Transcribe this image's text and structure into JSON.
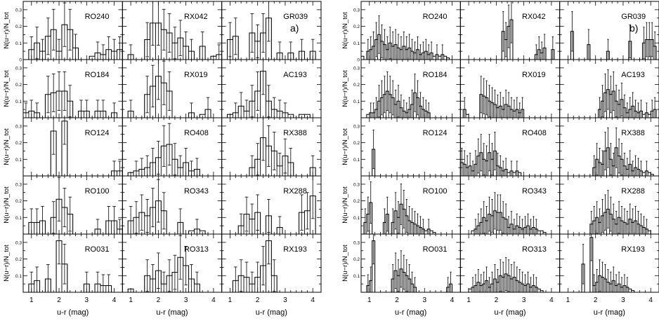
{
  "chart_data": [
    {
      "type": "bar",
      "panel_label": "a)",
      "xlabel": "u-r (mag)",
      "ylabel": "N(u−r)/N_tot",
      "xlim": [
        0.7,
        4.3
      ],
      "ylim": [
        0,
        0.35
      ],
      "x_ticks": [
        "1",
        "2",
        "3",
        "4"
      ],
      "y_ticks": [
        "0",
        "0.1",
        "0.2",
        "0.3"
      ],
      "bin_width": 0.2,
      "bins_x": [
        0.8,
        1.0,
        1.2,
        1.4,
        1.6,
        1.8,
        2.0,
        2.2,
        2.4,
        2.6,
        2.8,
        3.0,
        3.2,
        3.4,
        3.6,
        3.8,
        4.0,
        4.2
      ],
      "panels": [
        {
          "name": "RO240",
          "values": [
            0.0,
            0.06,
            0.1,
            0.05,
            0.14,
            0.18,
            0.05,
            0.21,
            0.18,
            0.07,
            0.0,
            0.0,
            0.02,
            0.04,
            0.03,
            0.06,
            0.05,
            0.06
          ]
        },
        {
          "name": "RX042",
          "values": [
            0.0,
            0.03,
            0.0,
            0.0,
            0.12,
            0.22,
            0.22,
            0.18,
            0.16,
            0.1,
            0.13,
            0.08,
            0.05,
            0.0,
            0.08,
            0.0,
            0.02,
            0.03
          ]
        },
        {
          "name": "GR039",
          "values": [
            0.0,
            0.12,
            0.14,
            0.0,
            0.0,
            0.16,
            0.11,
            0.16,
            0.25,
            0.0,
            0.04,
            0.0,
            0.04,
            0.0,
            0.05,
            0.0,
            0.05,
            0.0
          ]
        },
        {
          "name": "RO184",
          "values": [
            0.03,
            0.04,
            0.03,
            0.0,
            0.14,
            0.15,
            0.16,
            0.16,
            0.1,
            0.0,
            0.04,
            0.04,
            0.0,
            0.04,
            0.04,
            0.0,
            0.03,
            0.0
          ]
        },
        {
          "name": "RX019",
          "values": [
            0.0,
            0.04,
            0.0,
            0.0,
            0.14,
            0.19,
            0.25,
            0.21,
            0.16,
            0.0,
            0.0,
            0.0,
            0.03,
            0.0,
            0.02,
            0.05,
            0.0,
            0.0
          ]
        },
        {
          "name": "AC193",
          "values": [
            0.0,
            0.02,
            0.03,
            0.07,
            0.04,
            0.1,
            0.16,
            0.28,
            0.1,
            0.05,
            0.04,
            0.03,
            0.02,
            0.0,
            0.02,
            0.02,
            0.0,
            0.0
          ]
        },
        {
          "name": "RO124",
          "values": [
            0.0,
            0.0,
            0.0,
            0.0,
            0.0,
            0.27,
            0.0,
            0.33,
            0.0,
            0.0,
            0.0,
            0.0,
            0.0,
            0.0,
            0.0,
            0.0,
            0.03,
            0.03
          ]
        },
        {
          "name": "RO408",
          "values": [
            0.0,
            0.02,
            0.03,
            0.04,
            0.05,
            0.08,
            0.11,
            0.18,
            0.19,
            0.1,
            0.05,
            0.08,
            0.03,
            0.04,
            0.0,
            0.0,
            0.0,
            0.0
          ]
        },
        {
          "name": "RX388",
          "values": [
            0.0,
            0.0,
            0.0,
            0.0,
            0.0,
            0.05,
            0.1,
            0.23,
            0.18,
            0.15,
            0.06,
            0.12,
            0.08,
            0.0,
            0.0,
            0.0,
            0.05,
            0.0
          ]
        },
        {
          "name": "RO100",
          "values": [
            0.0,
            0.07,
            0.07,
            0.08,
            0.0,
            0.1,
            0.21,
            0.16,
            0.12,
            0.0,
            0.0,
            0.0,
            0.0,
            0.03,
            0.0,
            0.08,
            0.08,
            0.03
          ]
        },
        {
          "name": "RO343",
          "values": [
            0.0,
            0.08,
            0.1,
            0.13,
            0.11,
            0.16,
            0.2,
            0.14,
            0.0,
            0.0,
            0.07,
            0.0,
            0.02,
            0.03,
            0.02,
            0.0,
            0.0,
            0.0
          ]
        },
        {
          "name": "RX288",
          "values": [
            0.0,
            0.0,
            0.0,
            0.05,
            0.12,
            0.09,
            0.13,
            0.0,
            0.11,
            0.0,
            0.04,
            0.0,
            0.0,
            0.0,
            0.13,
            0.14,
            0.23,
            0.0
          ]
        },
        {
          "name": "RO031",
          "values": [
            0.0,
            0.05,
            0.07,
            0.0,
            0.08,
            0.0,
            0.31,
            0.17,
            0.0,
            0.0,
            0.0,
            0.05,
            0.0,
            0.05,
            0.04,
            0.04,
            0.0,
            0.0
          ]
        },
        {
          "name": "RO313",
          "values": [
            0.0,
            0.02,
            0.0,
            0.0,
            0.1,
            0.08,
            0.13,
            0.05,
            0.1,
            0.12,
            0.21,
            0.16,
            0.08,
            0.05,
            0.0,
            0.0,
            0.0,
            0.0
          ]
        },
        {
          "name": "RX193",
          "values": [
            0.0,
            0.0,
            0.07,
            0.1,
            0.09,
            0.05,
            0.09,
            0.16,
            0.31,
            0.1,
            0.0,
            0.0,
            0.0,
            0.0,
            0.0,
            0.0,
            0.0,
            0.0
          ]
        }
      ]
    },
    {
      "type": "bar",
      "panel_label": "b)",
      "xlabel": "u-r (mag)",
      "ylabel": "N(u−r)/N_tot",
      "xlim": [
        0.7,
        4.3
      ],
      "ylim": [
        0,
        0.35
      ],
      "x_ticks": [
        "1",
        "2",
        "3",
        "4"
      ],
      "y_ticks": [
        "0",
        "0.1",
        "0.2",
        "0.3"
      ],
      "bin_width": 0.1,
      "bins_x": [
        0.75,
        0.85,
        0.95,
        1.05,
        1.15,
        1.25,
        1.35,
        1.45,
        1.55,
        1.65,
        1.75,
        1.85,
        1.95,
        2.05,
        2.15,
        2.25,
        2.35,
        2.45,
        2.55,
        2.65,
        2.75,
        2.85,
        2.95,
        3.05,
        3.15,
        3.25,
        3.35,
        3.45,
        3.55,
        3.65,
        3.75,
        3.85,
        3.95,
        4.05,
        4.15,
        4.25
      ],
      "panels": [
        {
          "name": "RO240",
          "values": [
            0.02,
            0.0,
            0.05,
            0.06,
            0.08,
            0.12,
            0.15,
            0.11,
            0.09,
            0.06,
            0.1,
            0.08,
            0.09,
            0.07,
            0.06,
            0.08,
            0.06,
            0.07,
            0.05,
            0.04,
            0.06,
            0.03,
            0.04,
            0.05,
            0.03,
            0.04,
            0.02,
            0.03,
            0.02,
            0.03,
            0.02,
            0.01,
            0.0,
            0.0,
            0.0,
            0.0
          ]
        },
        {
          "name": "RX042",
          "values": [
            0.0,
            0.0,
            0.0,
            0.0,
            0.0,
            0.0,
            0.0,
            0.0,
            0.0,
            0.0,
            0.0,
            0.0,
            0.0,
            0.0,
            0.0,
            0.17,
            0.12,
            0.2,
            0.24,
            0.0,
            0.0,
            0.0,
            0.0,
            0.0,
            0.0,
            0.0,
            0.0,
            0.03,
            0.06,
            0.04,
            0.07,
            0.0,
            0.0,
            0.06,
            0.0,
            0.0
          ]
        },
        {
          "name": "GR039",
          "values": [
            0.0,
            0.0,
            0.0,
            0.0,
            0.17,
            0.0,
            0.0,
            0.0,
            0.0,
            0.0,
            0.09,
            0.0,
            0.0,
            0.0,
            0.0,
            0.0,
            0.0,
            0.05,
            0.0,
            0.0,
            0.0,
            0.0,
            0.0,
            0.0,
            0.0,
            0.11,
            0.0,
            0.0,
            0.0,
            0.0,
            0.1,
            0.12,
            0.12,
            0.12,
            0.08,
            0.0
          ]
        },
        {
          "name": "RO184",
          "values": [
            0.0,
            0.0,
            0.02,
            0.03,
            0.03,
            0.05,
            0.1,
            0.12,
            0.14,
            0.16,
            0.14,
            0.12,
            0.08,
            0.1,
            0.06,
            0.04,
            0.03,
            0.05,
            0.08,
            0.15,
            0.12,
            0.07,
            0.05,
            0.04,
            0.03,
            0.0,
            0.0,
            0.0,
            0.0,
            0.0,
            0.0,
            0.0,
            0.0,
            0.0,
            0.0,
            0.0
          ]
        },
        {
          "name": "RX019",
          "values": [
            0.0,
            0.05,
            0.02,
            0.0,
            0.0,
            0.0,
            0.0,
            0.14,
            0.13,
            0.12,
            0.1,
            0.09,
            0.08,
            0.06,
            0.07,
            0.05,
            0.08,
            0.07,
            0.05,
            0.04,
            0.05,
            0.03,
            0.05,
            0.0,
            0.0,
            0.0,
            0.0,
            0.0,
            0.0,
            0.0,
            0.0,
            0.0,
            0.0,
            0.0,
            0.0,
            0.0
          ]
        },
        {
          "name": "AC193",
          "values": [
            0.0,
            0.0,
            0.0,
            0.0,
            0.0,
            0.0,
            0.0,
            0.0,
            0.0,
            0.0,
            0.0,
            0.0,
            0.0,
            0.0,
            0.05,
            0.1,
            0.15,
            0.17,
            0.14,
            0.16,
            0.1,
            0.08,
            0.11,
            0.06,
            0.03,
            0.05,
            0.07,
            0.04,
            0.03,
            0.04,
            0.02,
            0.03,
            0.02,
            0.04,
            0.05,
            0.0
          ]
        },
        {
          "name": "RO124",
          "values": [
            0.0,
            0.0,
            0.0,
            0.0,
            0.16,
            0.0,
            0.0,
            0.0,
            0.0,
            0.0,
            0.0,
            0.0,
            0.0,
            0.0,
            0.0,
            0.0,
            0.0,
            0.0,
            0.0,
            0.0,
            0.0,
            0.0,
            0.0,
            0.0,
            0.0,
            0.0,
            0.0,
            0.0,
            0.0,
            0.0,
            0.0,
            0.0,
            0.0,
            0.0,
            0.0,
            0.0
          ]
        },
        {
          "name": "RO408",
          "values": [
            0.08,
            0.07,
            0.05,
            0.06,
            0.03,
            0.07,
            0.12,
            0.14,
            0.1,
            0.09,
            0.14,
            0.1,
            0.15,
            0.06,
            0.05,
            0.03,
            0.04,
            0.02,
            0.03,
            0.02,
            0.03,
            0.02,
            0.0,
            0.0,
            0.0,
            0.0,
            0.0,
            0.0,
            0.0,
            0.0,
            0.0,
            0.0,
            0.0,
            0.0,
            0.0,
            0.0
          ]
        },
        {
          "name": "RX388",
          "values": [
            0.0,
            0.0,
            0.0,
            0.0,
            0.0,
            0.0,
            0.0,
            0.0,
            0.0,
            0.0,
            0.0,
            0.0,
            0.05,
            0.1,
            0.08,
            0.07,
            0.15,
            0.17,
            0.1,
            0.06,
            0.17,
            0.12,
            0.1,
            0.06,
            0.04,
            0.07,
            0.03,
            0.05,
            0.04,
            0.03,
            0.02,
            0.03,
            0.02,
            0.01,
            0.0,
            0.0
          ]
        },
        {
          "name": "RO100",
          "values": [
            0.0,
            0.07,
            0.12,
            0.19,
            0.0,
            0.0,
            0.0,
            0.0,
            0.07,
            0.12,
            0.0,
            0.07,
            0.14,
            0.1,
            0.18,
            0.15,
            0.11,
            0.08,
            0.07,
            0.06,
            0.05,
            0.04,
            0.03,
            0.02,
            0.03,
            0.02,
            0.01,
            0.0,
            0.0,
            0.0,
            0.0,
            0.0,
            0.0,
            0.0,
            0.0,
            0.0
          ]
        },
        {
          "name": "RO343",
          "values": [
            0.0,
            0.0,
            0.0,
            0.0,
            0.02,
            0.03,
            0.05,
            0.07,
            0.1,
            0.08,
            0.12,
            0.11,
            0.14,
            0.13,
            0.13,
            0.1,
            0.09,
            0.04,
            0.06,
            0.03,
            0.05,
            0.04,
            0.03,
            0.04,
            0.05,
            0.03,
            0.04,
            0.03,
            0.02,
            0.02,
            0.01,
            0.0,
            0.0,
            0.0,
            0.0,
            0.0
          ]
        },
        {
          "name": "RX288",
          "values": [
            0.0,
            0.0,
            0.0,
            0.0,
            0.0,
            0.0,
            0.0,
            0.0,
            0.0,
            0.0,
            0.0,
            0.06,
            0.08,
            0.1,
            0.07,
            0.11,
            0.13,
            0.15,
            0.12,
            0.09,
            0.06,
            0.1,
            0.08,
            0.07,
            0.06,
            0.09,
            0.07,
            0.08,
            0.06,
            0.05,
            0.04,
            0.03,
            0.02,
            0.0,
            0.0,
            0.0
          ]
        },
        {
          "name": "RO031",
          "values": [
            0.0,
            0.0,
            0.04,
            0.07,
            0.31,
            0.0,
            0.0,
            0.0,
            0.0,
            0.0,
            0.0,
            0.08,
            0.13,
            0.1,
            0.14,
            0.12,
            0.1,
            0.08,
            0.05,
            0.03,
            0.0,
            0.0,
            0.0,
            0.0,
            0.0,
            0.0,
            0.0,
            0.0,
            0.0,
            0.0,
            0.0,
            0.03,
            0.05,
            0.0,
            0.0,
            0.0
          ]
        },
        {
          "name": "RO313",
          "values": [
            0.0,
            0.0,
            0.0,
            0.02,
            0.03,
            0.04,
            0.06,
            0.04,
            0.05,
            0.07,
            0.03,
            0.05,
            0.08,
            0.06,
            0.1,
            0.09,
            0.11,
            0.1,
            0.08,
            0.09,
            0.07,
            0.06,
            0.05,
            0.04,
            0.05,
            0.03,
            0.04,
            0.03,
            0.02,
            0.01,
            0.0,
            0.0,
            0.0,
            0.0,
            0.0,
            0.0
          ]
        },
        {
          "name": "RX193",
          "values": [
            0.0,
            0.0,
            0.0,
            0.0,
            0.0,
            0.0,
            0.0,
            0.0,
            0.17,
            0.0,
            0.0,
            0.33,
            0.04,
            0.06,
            0.1,
            0.09,
            0.08,
            0.06,
            0.05,
            0.07,
            0.04,
            0.05,
            0.03,
            0.04,
            0.03,
            0.02,
            0.01,
            0.0,
            0.0,
            0.0,
            0.0,
            0.0,
            0.0,
            0.0,
            0.0,
            0.0
          ]
        }
      ]
    }
  ]
}
